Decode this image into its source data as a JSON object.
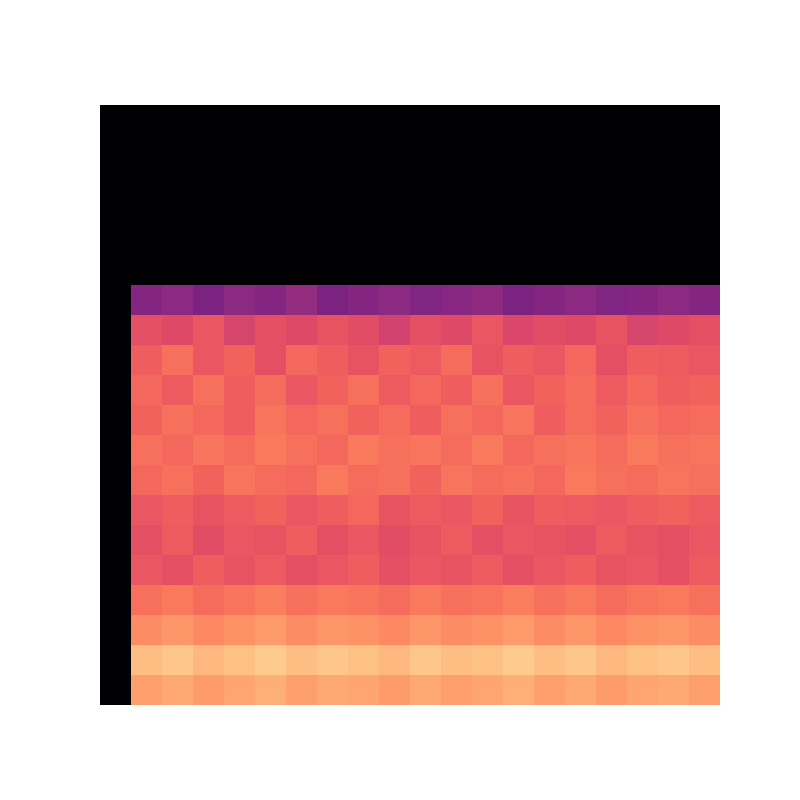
{
  "chart_data": {
    "type": "heatmap",
    "color": "magma",
    "zlim": [
      0,
      100
    ],
    "tick_labels": false,
    "cells": [
      [
        0,
        0,
        0,
        0,
        0,
        0,
        0,
        0,
        0,
        0,
        0,
        0,
        0,
        0,
        0,
        0,
        0,
        0,
        0,
        0
      ],
      [
        0,
        0,
        0,
        0,
        0,
        0,
        0,
        0,
        0,
        0,
        0,
        0,
        0,
        0,
        0,
        0,
        0,
        0,
        0,
        0
      ],
      [
        0,
        0,
        0,
        0,
        0,
        0,
        0,
        0,
        0,
        0,
        0,
        0,
        0,
        0,
        0,
        0,
        0,
        0,
        0,
        0
      ],
      [
        0,
        0,
        0,
        0,
        0,
        0,
        0,
        0,
        0,
        0,
        0,
        0,
        0,
        0,
        0,
        0,
        0,
        0,
        0,
        0
      ],
      [
        0,
        0,
        0,
        0,
        0,
        0,
        0,
        0,
        0,
        0,
        0,
        0,
        0,
        0,
        0,
        0,
        0,
        0,
        0,
        0
      ],
      [
        0,
        0,
        0,
        0,
        0,
        0,
        0,
        0,
        0,
        0,
        0,
        0,
        0,
        0,
        0,
        0,
        0,
        0,
        0,
        0
      ],
      [
        0,
        38,
        40,
        36,
        40,
        38,
        42,
        36,
        38,
        40,
        37,
        39,
        41,
        36,
        38,
        40,
        37,
        38,
        40,
        38
      ],
      [
        0,
        62,
        60,
        64,
        58,
        62,
        60,
        63,
        61,
        57,
        62,
        60,
        64,
        59,
        61,
        60,
        63,
        58,
        60,
        62
      ],
      [
        0,
        66,
        70,
        64,
        67,
        62,
        68,
        66,
        63,
        67,
        65,
        69,
        63,
        66,
        64,
        68,
        62,
        66,
        65,
        64
      ],
      [
        0,
        68,
        65,
        70,
        66,
        69,
        64,
        67,
        70,
        65,
        68,
        66,
        70,
        64,
        67,
        69,
        65,
        68,
        66,
        67
      ],
      [
        0,
        67,
        70,
        68,
        66,
        71,
        68,
        70,
        67,
        69,
        66,
        70,
        68,
        71,
        66,
        69,
        67,
        70,
        68,
        69
      ],
      [
        0,
        70,
        68,
        71,
        69,
        72,
        70,
        68,
        72,
        70,
        71,
        69,
        72,
        68,
        70,
        71,
        69,
        72,
        70,
        71
      ],
      [
        0,
        68,
        70,
        67,
        71,
        69,
        68,
        72,
        69,
        70,
        67,
        71,
        69,
        70,
        68,
        72,
        70,
        69,
        71,
        70
      ],
      [
        0,
        64,
        66,
        63,
        65,
        67,
        64,
        66,
        68,
        63,
        65,
        64,
        67,
        63,
        66,
        65,
        64,
        66,
        67,
        65
      ],
      [
        0,
        62,
        65,
        61,
        64,
        63,
        66,
        62,
        64,
        61,
        63,
        65,
        62,
        64,
        63,
        62,
        65,
        63,
        62,
        64
      ],
      [
        0,
        64,
        62,
        66,
        63,
        65,
        62,
        64,
        66,
        62,
        64,
        63,
        65,
        62,
        64,
        66,
        63,
        64,
        62,
        65
      ],
      [
        0,
        70,
        72,
        69,
        71,
        73,
        70,
        72,
        71,
        69,
        72,
        70,
        71,
        73,
        70,
        72,
        69,
        71,
        72,
        70
      ],
      [
        0,
        76,
        78,
        75,
        77,
        79,
        76,
        78,
        77,
        75,
        78,
        76,
        77,
        79,
        76,
        78,
        75,
        77,
        78,
        76
      ],
      [
        0,
        86,
        88,
        85,
        87,
        89,
        86,
        88,
        87,
        85,
        88,
        86,
        87,
        89,
        86,
        88,
        85,
        87,
        88,
        86
      ],
      [
        0,
        80,
        82,
        79,
        81,
        83,
        80,
        82,
        81,
        79,
        82,
        80,
        81,
        83,
        80,
        82,
        79,
        81,
        82,
        80
      ]
    ]
  }
}
